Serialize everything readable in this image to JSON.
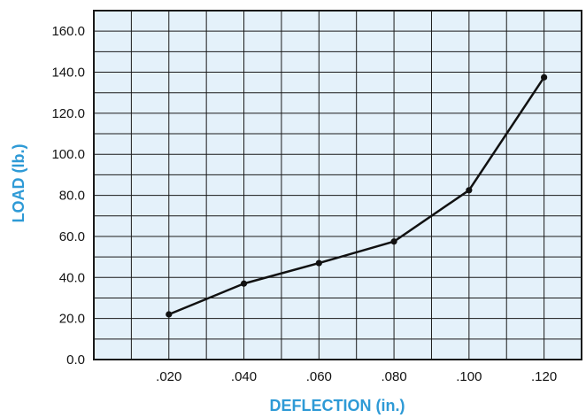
{
  "chart_data": {
    "type": "line",
    "xlabel": "DEFLECTION (in.)",
    "ylabel": "LOAD (lb.)",
    "xlim": [
      0,
      0.13
    ],
    "ylim": [
      0,
      170
    ],
    "x_ticks": [
      {
        "value": 0.02,
        "label": ".020"
      },
      {
        "value": 0.04,
        "label": ".040"
      },
      {
        "value": 0.06,
        "label": ".060"
      },
      {
        "value": 0.08,
        "label": ".080"
      },
      {
        "value": 0.1,
        "label": ".100"
      },
      {
        "value": 0.12,
        "label": ".120"
      }
    ],
    "y_ticks": [
      {
        "value": 0,
        "label": "0.0"
      },
      {
        "value": 20,
        "label": "20.0"
      },
      {
        "value": 40,
        "label": "40.0"
      },
      {
        "value": 60,
        "label": "60.0"
      },
      {
        "value": 80,
        "label": "80.0"
      },
      {
        "value": 100,
        "label": "100.0"
      },
      {
        "value": 120,
        "label": "120.0"
      },
      {
        "value": 140,
        "label": "140.0"
      },
      {
        "value": 160,
        "label": "160.0"
      }
    ],
    "grid": true,
    "grid_x_step": 0.01,
    "grid_y_step": 10,
    "series": [
      {
        "x": [
          0.02,
          0.04,
          0.06,
          0.08,
          0.1,
          0.12
        ],
        "y": [
          22,
          37,
          47,
          57.5,
          82.5,
          137.5
        ]
      }
    ],
    "colors": {
      "plot_background": "#e4f1fa",
      "grid": "#1a1a1a",
      "line": "#111111",
      "axis_title": "#2e9ad6"
    }
  }
}
